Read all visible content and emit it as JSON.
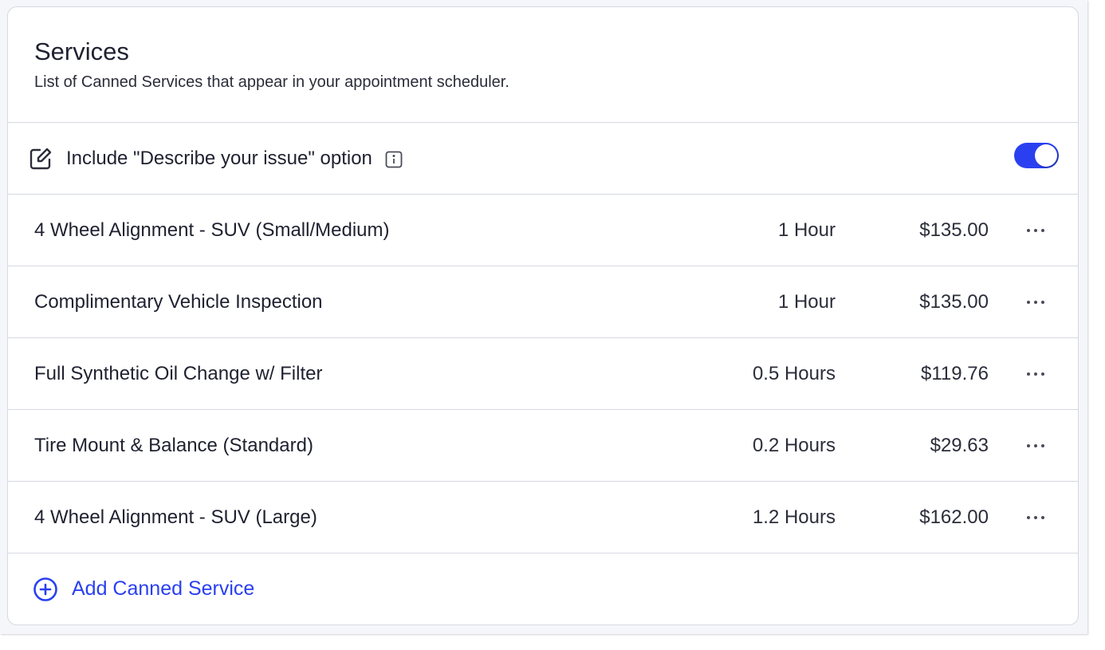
{
  "header": {
    "title": "Services",
    "subtitle": "List of Canned Services that appear in your appointment scheduler."
  },
  "describe_option": {
    "label": "Include \"Describe your issue\" option",
    "enabled": true,
    "icon": "edit-icon",
    "info_icon": "info-icon"
  },
  "services": [
    {
      "name": "4 Wheel Alignment - SUV (Small/Medium)",
      "duration": "1 Hour",
      "price": "$135.00"
    },
    {
      "name": "Complimentary Vehicle Inspection",
      "duration": "1 Hour",
      "price": "$135.00"
    },
    {
      "name": "Full Synthetic Oil Change w/ Filter",
      "duration": "0.5 Hours",
      "price": "$119.76"
    },
    {
      "name": "Tire Mount & Balance (Standard)",
      "duration": "0.2 Hours",
      "price": "$29.63"
    },
    {
      "name": "4 Wheel Alignment - SUV (Large)",
      "duration": "1.2 Hours",
      "price": "$162.00"
    }
  ],
  "add_button": {
    "label": "Add Canned Service",
    "icon": "plus-circle-icon"
  },
  "colors": {
    "accent": "#2a40f0",
    "text": "#1f2130",
    "border": "#d6d9e3"
  }
}
